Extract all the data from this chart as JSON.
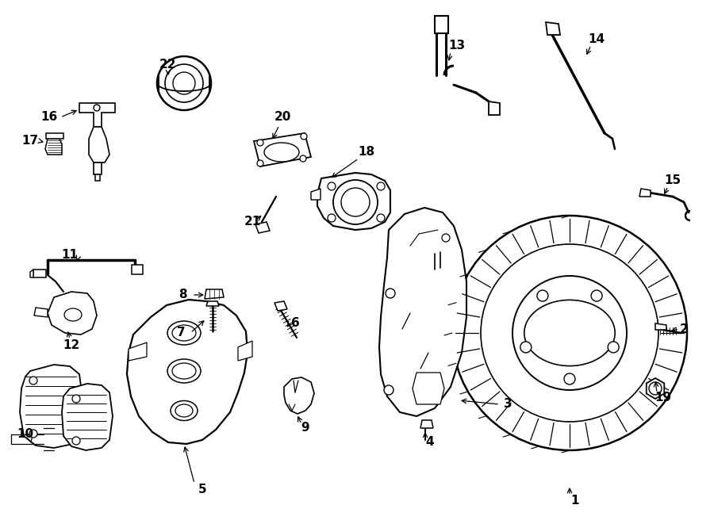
{
  "bg_color": "#ffffff",
  "line_color": "#000000",
  "fig_width": 9.0,
  "fig_height": 6.61,
  "dpi": 100
}
